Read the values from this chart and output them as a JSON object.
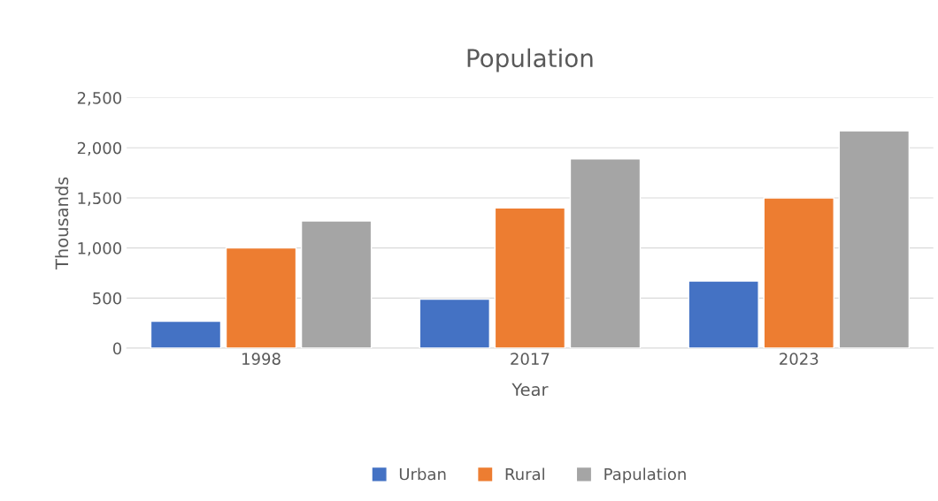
{
  "chart_data": {
    "type": "bar",
    "title": "Population",
    "xlabel": "Year",
    "ylabel": "Thousands",
    "categories": [
      "1998",
      "2017",
      "2023"
    ],
    "series": [
      {
        "name": "Urban",
        "color": "#4472c4",
        "values": [
          270,
          490,
          670
        ]
      },
      {
        "name": "Rural",
        "color": "#ed7d31",
        "values": [
          1000,
          1400,
          1500
        ]
      },
      {
        "name": "Papulation",
        "color": "#a5a5a5",
        "values": [
          1270,
          1890,
          2170
        ]
      }
    ],
    "ylim": [
      0,
      2500
    ],
    "yticks": [
      {
        "value": 0,
        "label": "0"
      },
      {
        "value": 500,
        "label": "500"
      },
      {
        "value": 1000,
        "label": "1,000"
      },
      {
        "value": 1500,
        "label": "1,500"
      },
      {
        "value": 2000,
        "label": "2,000"
      },
      {
        "value": 2500,
        "label": "2,500"
      }
    ],
    "grid": "y",
    "legend": "bottom"
  }
}
